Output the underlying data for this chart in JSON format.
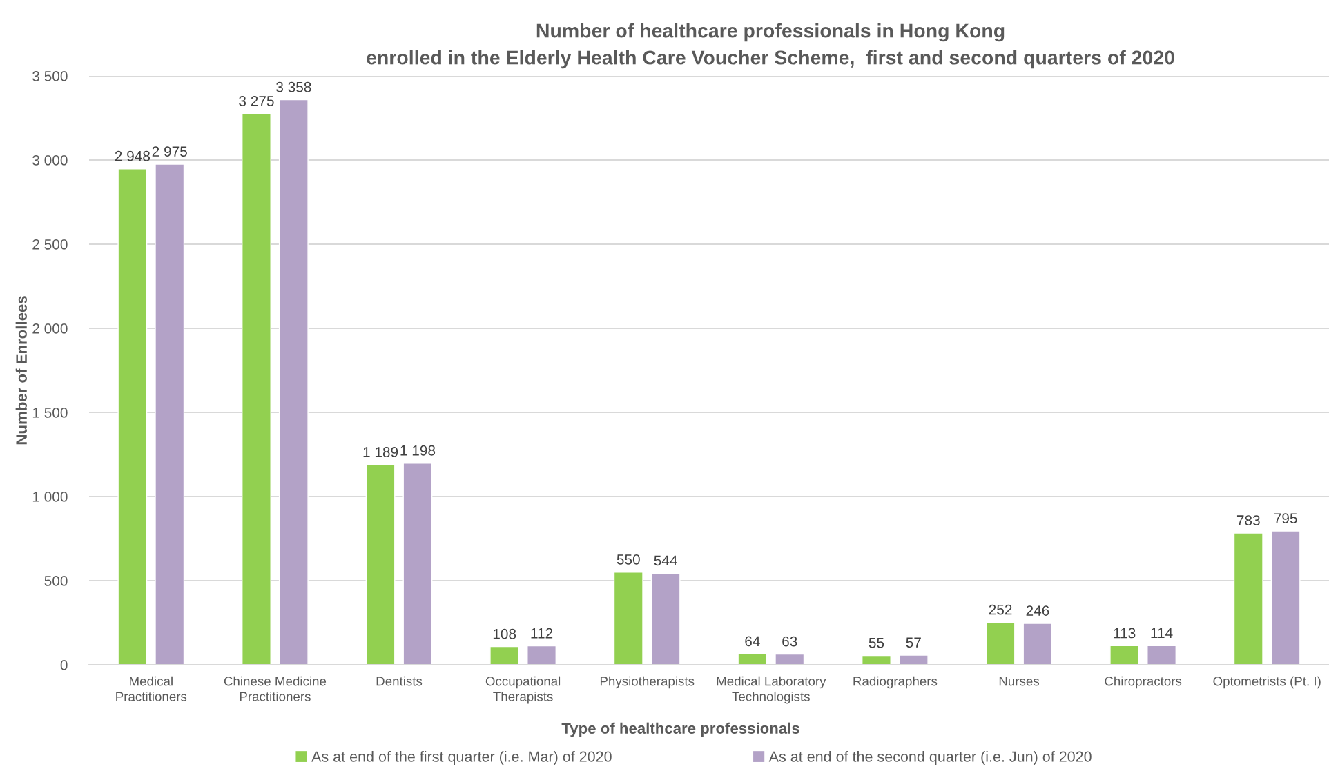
{
  "chart_data": {
    "type": "bar",
    "title": "Number of healthcare professionals in Hong Kong\nenrolled in the Elderly Health Care Voucher Scheme,  first and second quarters of 2020",
    "xlabel": "Type of healthcare professionals",
    "ylabel": "Number of Enrollees",
    "categories": [
      "Medical Practitioners",
      "Chinese Medicine Practitioners",
      "Dentists",
      "Occupational Therapists",
      "Physiotherapists",
      "Medical Laboratory Technologists",
      "Radiographers",
      "Nurses",
      "Chiropractors",
      "Optometrists (Pt. I)"
    ],
    "series": [
      {
        "name": "As at end of the first quarter (i.e. Mar) of 2020",
        "color": "#92d050",
        "values": [
          2948,
          3275,
          1189,
          108,
          550,
          64,
          55,
          252,
          113,
          783
        ],
        "value_labels": [
          "2 948",
          "3 275",
          "1 189",
          "108",
          "550",
          "64",
          "55",
          "252",
          "113",
          "783"
        ]
      },
      {
        "name": "As at end of the second quarter (i.e. Jun) of 2020",
        "color": "#b3a2c7",
        "values": [
          2975,
          3358,
          1198,
          112,
          544,
          63,
          57,
          246,
          114,
          795
        ],
        "value_labels": [
          "2 975",
          "3 358",
          "1 198",
          "112",
          "544",
          "63",
          "57",
          "246",
          "114",
          "795"
        ]
      }
    ],
    "ylim": [
      0,
      3500
    ],
    "yticks": [
      0,
      500,
      {
        "value": 1000,
        "label": "1 000"
      },
      {
        "value": 1500,
        "label": "1 500"
      },
      {
        "value": 2000,
        "label": "2 000"
      },
      {
        "value": 2500,
        "label": "2 500"
      },
      {
        "value": 3000,
        "label": "3 000"
      },
      {
        "value": 3500,
        "label": "3 500"
      }
    ],
    "grid": "y",
    "legend": "bottom"
  }
}
